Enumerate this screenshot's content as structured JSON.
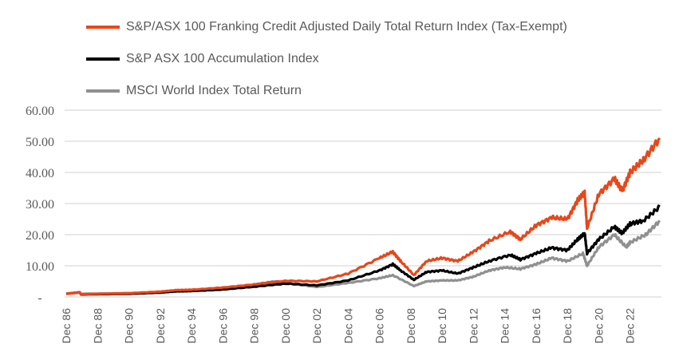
{
  "chart_data": {
    "type": "line",
    "title": "",
    "xlabel": "",
    "ylabel": "",
    "ylim": [
      0,
      60
    ],
    "yticks": [
      0,
      10,
      20,
      30,
      40,
      50,
      60
    ],
    "ytick_labels": [
      "-",
      "10.00",
      "20.00",
      "30.00",
      "40.00",
      "50.00",
      "60.00"
    ],
    "xlim": [
      1986.95,
      2024.85
    ],
    "xticks": [
      1986.95,
      1988.95,
      1990.95,
      1992.95,
      1994.95,
      1996.95,
      1998.95,
      2000.95,
      2002.95,
      2004.95,
      2006.95,
      2008.95,
      2010.95,
      2012.95,
      2014.95,
      2016.95,
      2018.95,
      2020.95,
      2022.95
    ],
    "xtick_labels": [
      "Dec 86",
      "Dec 88",
      "Dec 90",
      "Dec 92",
      "Dec 94",
      "Dec 96",
      "Dec 98",
      "Dec 00",
      "Dec 02",
      "Dec 04",
      "Dec 06",
      "Dec 08",
      "Dec 10",
      "Dec 12",
      "Dec 14",
      "Dec 16",
      "Dec 18",
      "Dec 20",
      "Dec 22"
    ],
    "grid": true,
    "legend_position": "top-left",
    "series": [
      {
        "name": "S&P/ASX 100 Franking Credit Adjusted Daily Total Return Index (Tax-Exempt)",
        "color": "#E8471A",
        "x": [
          1986.95,
          1987.8,
          1987.9,
          1990.95,
          1992.95,
          1994.0,
          1994.95,
          1996.95,
          1998.95,
          2000.95,
          2002.95,
          2004.95,
          2006.95,
          2007.8,
          2008.3,
          2009.15,
          2009.95,
          2010.95,
          2011.95,
          2012.95,
          2013.95,
          2015.3,
          2015.95,
          2016.95,
          2017.95,
          2018.95,
          2019.6,
          2020.05,
          2020.2,
          2020.95,
          2021.95,
          2022.45,
          2022.95,
          2023.8,
          2024.85
        ],
        "y": [
          1.0,
          1.5,
          0.9,
          1.2,
          1.7,
          2.2,
          2.3,
          3.0,
          4.0,
          5.2,
          5.0,
          7.5,
          12.5,
          14.5,
          11.5,
          7.0,
          11.5,
          12.5,
          11.5,
          14.5,
          18.0,
          21.0,
          18.5,
          23.0,
          25.5,
          25.0,
          31.0,
          33.5,
          22.0,
          33.0,
          38.0,
          34.0,
          40.0,
          44.0,
          51.0
        ]
      },
      {
        "name": "S&P ASX 100 Accumulation Index",
        "color": "#000000",
        "x": [
          1986.95,
          1987.8,
          1987.9,
          1990.95,
          1992.95,
          1994.0,
          1994.95,
          1996.95,
          1998.95,
          2000.95,
          2002.95,
          2004.95,
          2006.95,
          2007.8,
          2008.3,
          2009.15,
          2009.95,
          2010.95,
          2011.95,
          2012.95,
          2013.95,
          2015.3,
          2015.95,
          2016.95,
          2017.95,
          2018.95,
          2019.6,
          2020.05,
          2020.2,
          2020.95,
          2021.95,
          2022.45,
          2022.95,
          2023.8,
          2024.85
        ],
        "y": [
          1.0,
          1.5,
          0.8,
          1.0,
          1.4,
          1.8,
          1.9,
          2.4,
          3.3,
          4.3,
          3.7,
          5.3,
          8.5,
          10.5,
          8.5,
          5.5,
          8.0,
          8.5,
          7.5,
          9.5,
          11.5,
          13.5,
          12.0,
          14.0,
          15.8,
          15.0,
          18.5,
          20.5,
          14.0,
          18.5,
          22.5,
          20.5,
          23.5,
          24.5,
          29.0
        ]
      },
      {
        "name": "MSCI World Index Total Return",
        "color": "#909090",
        "x": [
          1986.95,
          1987.8,
          1987.9,
          1990.95,
          1992.95,
          1994.95,
          1996.95,
          1998.95,
          2000.2,
          2000.95,
          2002.95,
          2004.95,
          2006.95,
          2007.8,
          2009.15,
          2009.95,
          2010.95,
          2011.95,
          2012.95,
          2013.95,
          2014.95,
          2015.95,
          2016.95,
          2017.95,
          2018.95,
          2019.95,
          2020.2,
          2020.95,
          2021.95,
          2022.7,
          2022.95,
          2023.95,
          2024.85
        ],
        "y": [
          1.0,
          1.4,
          1.0,
          1.2,
          1.5,
          2.0,
          2.8,
          4.0,
          5.0,
          4.5,
          3.2,
          4.5,
          6.0,
          7.0,
          3.5,
          5.0,
          5.3,
          5.3,
          6.5,
          8.5,
          9.5,
          9.0,
          10.5,
          12.5,
          11.5,
          14.0,
          10.0,
          16.0,
          20.0,
          16.0,
          17.5,
          20.0,
          24.5
        ]
      }
    ]
  }
}
